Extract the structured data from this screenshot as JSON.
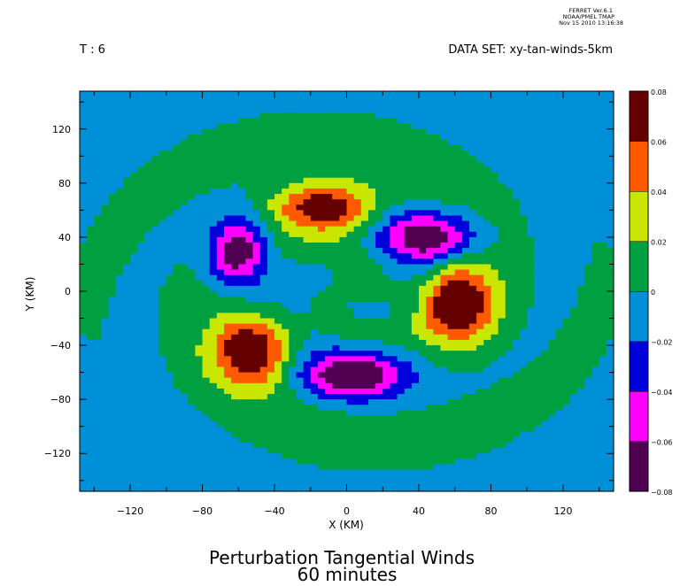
{
  "header": {
    "program": "FERRET Ver.6.1",
    "org": "NOAA/PMEL TMAP",
    "timestamp": "Nov 15 2010 13:16:38",
    "time_label": "T : 6",
    "dataset_label": "DATA SET: xy-tan-winds-5km"
  },
  "chart_data": {
    "type": "heatmap",
    "title": "Perturbation Tangential Winds",
    "subtitle": "60 minutes",
    "xlabel": "X (KM)",
    "ylabel": "Y (KM)",
    "xlim": [
      -148,
      148
    ],
    "ylim": [
      -148,
      148
    ],
    "xticks": [
      -120,
      -80,
      -40,
      0,
      40,
      80,
      120
    ],
    "yticks": [
      -120,
      -80,
      -40,
      0,
      40,
      80,
      120
    ],
    "colorbar": {
      "levels": [
        -0.08,
        -0.06,
        -0.04,
        -0.02,
        0,
        0.02,
        0.04,
        0.06,
        0.08
      ],
      "labels": [
        "-0.08",
        "-0.06",
        "-0.04",
        "-0.02",
        "0",
        "0.02",
        "0.04",
        "0.06",
        "0.08"
      ],
      "colors": [
        "#500050",
        "#ff00ff",
        "#0000dc",
        "#0090d8",
        "#00a040",
        "#c8e600",
        "#ff5a00",
        "#640000"
      ]
    },
    "field": {
      "background": -0.01,
      "bands": [
        {
          "type": "arm",
          "amp": 0.02,
          "r0": 108,
          "phase": 1.3,
          "width": 24
        },
        {
          "type": "arm",
          "amp": 0.02,
          "r0": 108,
          "phase": 4.44,
          "width": 24
        },
        {
          "type": "arm",
          "amp": 0.014,
          "r0": 50,
          "phase": 2.6,
          "width": 14
        },
        {
          "type": "arm",
          "amp": 0.014,
          "r0": 50,
          "phase": 5.74,
          "width": 14
        }
      ],
      "blobs": [
        {
          "x": -12,
          "y": 62,
          "amp": 0.082,
          "sx": 20,
          "sy": 13
        },
        {
          "x": -52,
          "y": -44,
          "amp": 0.082,
          "sx": 15,
          "sy": 18
        },
        {
          "x": 62,
          "y": -10,
          "amp": 0.082,
          "sx": 14,
          "sy": 20
        },
        {
          "x": -60,
          "y": 28,
          "amp": -0.082,
          "sx": 11,
          "sy": 18
        },
        {
          "x": 46,
          "y": 40,
          "amp": -0.082,
          "sx": 18,
          "sy": 13
        },
        {
          "x": 4,
          "y": -62,
          "amp": -0.082,
          "sx": 20,
          "sy": 12
        },
        {
          "x": 8,
          "y": 6,
          "amp": 0.012,
          "sx": 24,
          "sy": 24
        }
      ]
    }
  }
}
